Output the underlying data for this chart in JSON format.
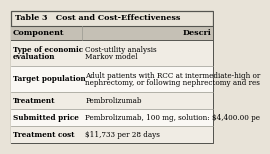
{
  "title": "Table 3   Cost and Cost-Effectiveness",
  "col1_header": "Component",
  "col2_header": "Descri",
  "rows": [
    {
      "label": "Type of economic\nevaluation",
      "value": "Cost-utility analysis\nMarkov model"
    },
    {
      "label": "Target population",
      "value": "Adult patients with RCC at intermediate-high or\nnephrectomy, or following nephrectomy and res"
    },
    {
      "label": "Treatment",
      "value": "Pembrolizumab"
    },
    {
      "label": "Submitted price",
      "value": "Pembrolizumab, 100 mg, solution: $4,400.00 pe"
    },
    {
      "label": "Treatment cost",
      "value": "$11,733 per 28 days"
    }
  ],
  "outer_border_color": "#555550",
  "inner_border_color": "#999990",
  "title_bg": "#e8e3d8",
  "header_bg": "#c5c0b5",
  "row_bg_odd": "#f0ece4",
  "row_bg_even": "#faf8f4",
  "title_fontsize": 5.8,
  "header_fontsize": 5.8,
  "cell_fontsize": 5.2,
  "col_split": 0.355
}
